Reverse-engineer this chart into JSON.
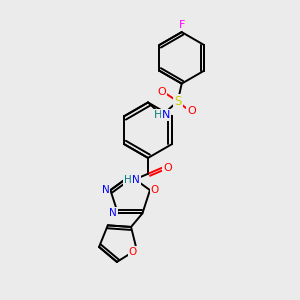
{
  "background_color": "#ebebeb",
  "bond_color": "#000000",
  "atom_colors": {
    "N": "#0000ff",
    "O": "#ff0000",
    "S": "#cccc00",
    "F": "#ff00ff",
    "H": "#008080"
  },
  "figsize": [
    3.0,
    3.0
  ],
  "dpi": 100,
  "lw": 1.4
}
